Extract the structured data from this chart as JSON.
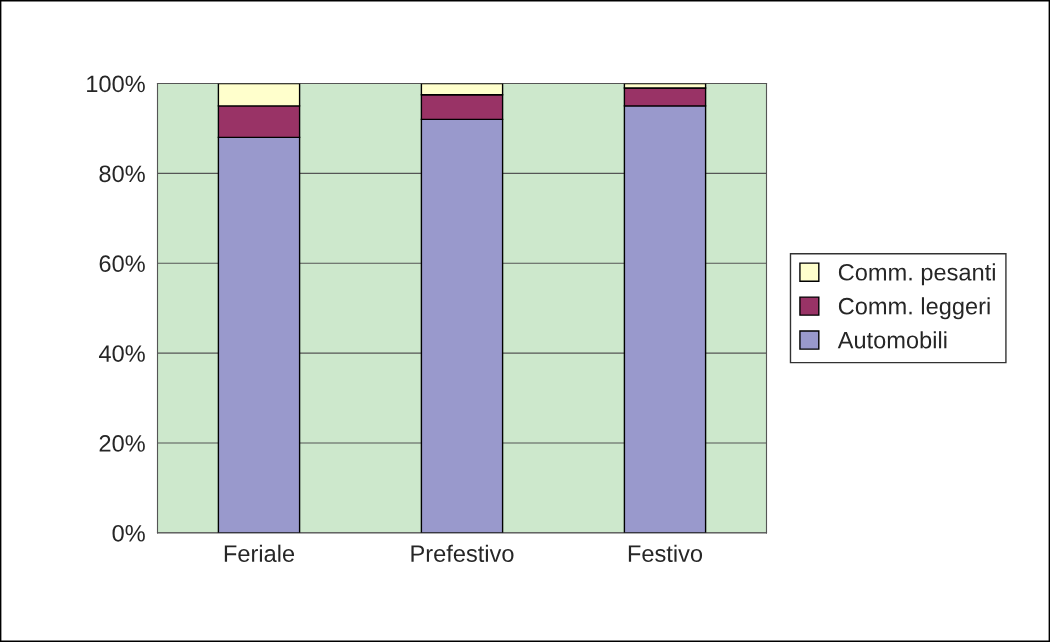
{
  "chart_data": {
    "type": "bar",
    "stacked": true,
    "categories": [
      "Feriale",
      "Prefestivo",
      "Festivo"
    ],
    "series": [
      {
        "name": "Automobili",
        "color": "#9999cc",
        "values": [
          88,
          92,
          95
        ]
      },
      {
        "name": "Comm. leggeri",
        "color": "#993366",
        "values": [
          7,
          5.5,
          4
        ]
      },
      {
        "name": "Comm. pesanti",
        "color": "#ffffcc",
        "values": [
          5,
          2.5,
          1
        ]
      }
    ],
    "ylim": [
      0,
      100
    ],
    "yticks": [
      {
        "value": 0,
        "label": "0%"
      },
      {
        "value": 20,
        "label": "20%"
      },
      {
        "value": 40,
        "label": "40%"
      },
      {
        "value": 60,
        "label": "60%"
      },
      {
        "value": 80,
        "label": "80%"
      },
      {
        "value": 100,
        "label": "100%"
      }
    ],
    "grid": "y",
    "legend": "right"
  }
}
